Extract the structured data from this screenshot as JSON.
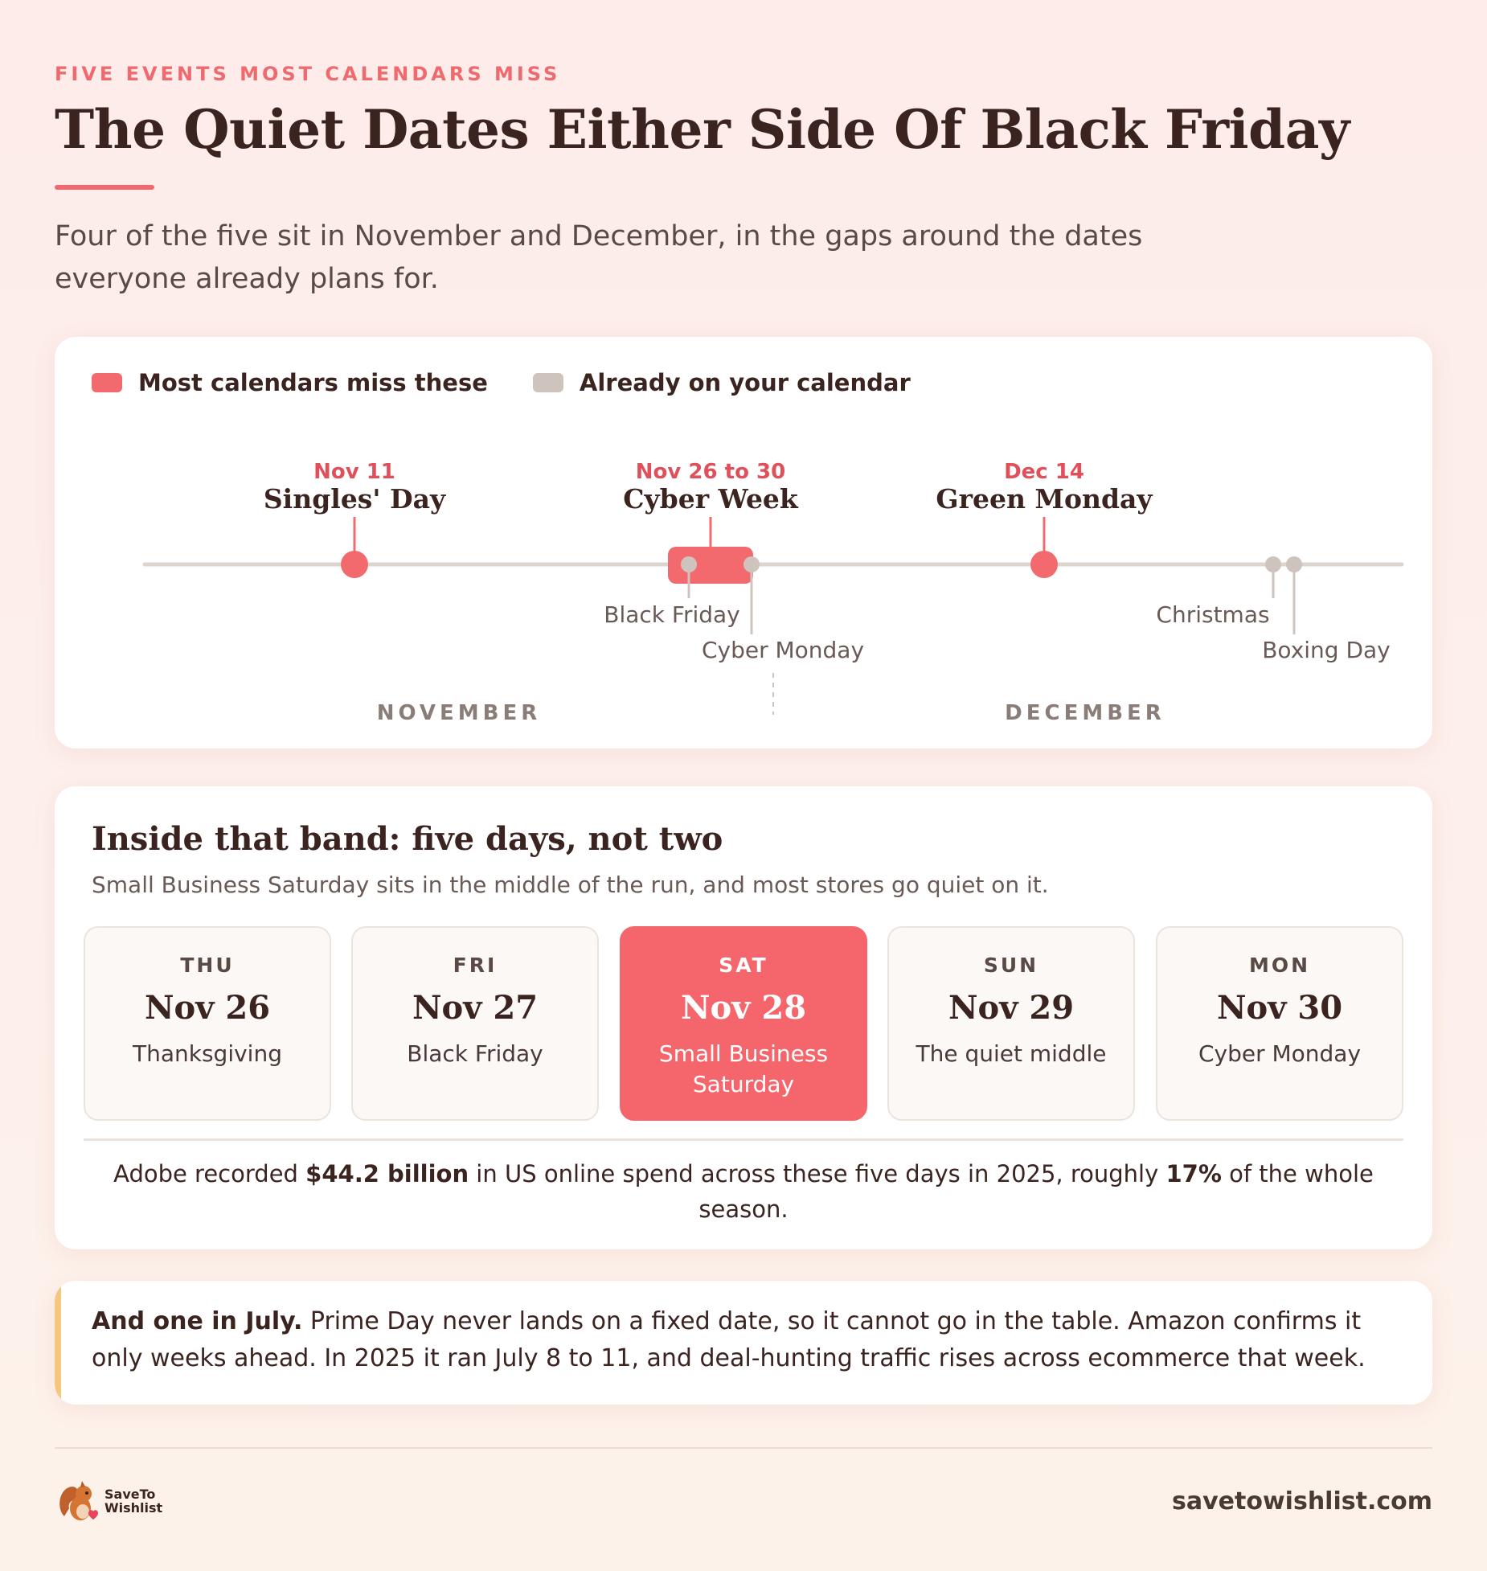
{
  "eyebrow": "FIVE EVENTS MOST CALENDARS MISS",
  "title": "The Quiet Dates Either Side Of Black Friday",
  "subtitle": "Four of the five sit in November and December, in the gaps around the dates everyone already plans for.",
  "colors": {
    "accent": "#f26a6e",
    "accent_text": "#e0505a",
    "muted_marker": "#cfc4bd",
    "note_accent": "#f5c77e",
    "ink": "#3b2420"
  },
  "legend": [
    {
      "label": "Most calendars miss these",
      "color": "#f26a6e"
    },
    {
      "label": "Already on your calendar",
      "color": "#cfc4bd"
    }
  ],
  "timeline": {
    "highlighted": [
      {
        "date": "Nov 11",
        "name": "Singles' Day"
      },
      {
        "date": "Nov 26 to 30",
        "name": "Cyber Week"
      },
      {
        "date": "Dec 14",
        "name": "Green Monday"
      }
    ],
    "existing": [
      {
        "name": "Black Friday"
      },
      {
        "name": "Cyber Monday"
      },
      {
        "name": "Christmas"
      },
      {
        "name": "Boxing Day"
      }
    ],
    "months": [
      "NOVEMBER",
      "DECEMBER"
    ]
  },
  "band": {
    "title": "Inside that band: five days, not two",
    "subtitle": "Small Business Saturday sits in the middle of the run, and most stores go quiet on it.",
    "days": [
      {
        "dow": "THU",
        "date": "Nov 26",
        "label": "Thanksgiving",
        "highlight": false
      },
      {
        "dow": "FRI",
        "date": "Nov 27",
        "label": "Black Friday",
        "highlight": false
      },
      {
        "dow": "SAT",
        "date": "Nov 28",
        "label": "Small Business Saturday",
        "highlight": true
      },
      {
        "dow": "SUN",
        "date": "Nov 29",
        "label": "The quiet middle",
        "highlight": false
      },
      {
        "dow": "MON",
        "date": "Nov 30",
        "label": "Cyber Monday",
        "highlight": false
      }
    ],
    "stat": {
      "pre": "Adobe recorded ",
      "amount": "$44.2 billion",
      "mid": " in US online spend across these five days in 2025, roughly ",
      "share": "17%",
      "post": " of the whole season."
    }
  },
  "note": {
    "lead": "And one in July.",
    "body": " Prime Day never lands on a fixed date, so it cannot go in the table. Amazon confirms it only weeks ahead. In 2025 it ran July 8 to 11, and deal-hunting traffic rises across ecommerce that week."
  },
  "footer": {
    "logo_icon": "squirrel-heart-icon",
    "logo_line1": "SaveTo",
    "logo_line2": "Wishlist",
    "site": "savetowishlist.com"
  }
}
